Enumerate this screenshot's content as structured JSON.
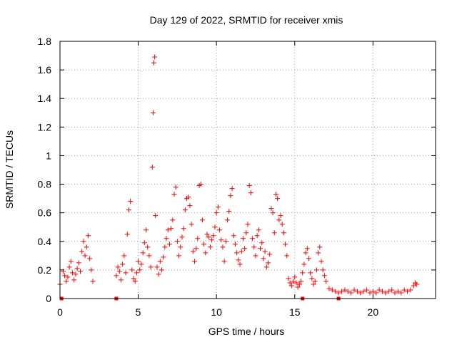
{
  "chart_data": {
    "type": "scatter",
    "title": "Day 129 of 2022, SRMTID for receiver xmis",
    "xlabel": "GPS time / hours",
    "ylabel": "SRMTID / TECUs",
    "xlim": [
      0,
      24
    ],
    "ylim": [
      0,
      1.8
    ],
    "xticks": [
      0,
      5,
      10,
      15,
      20
    ],
    "xtick_labels": [
      "0",
      "5",
      "10",
      "15",
      "20"
    ],
    "yticks": [
      0,
      0.2,
      0.4,
      0.6,
      0.8,
      1,
      1.2,
      1.4,
      1.6,
      1.8
    ],
    "ytick_labels": [
      "0",
      "0.2",
      "0.4",
      "0.6",
      "0.8",
      "1",
      "1.2",
      "1.4",
      "1.6",
      "1.8"
    ],
    "grid": true,
    "marker": "+",
    "color": "#ff0000",
    "data_gaps_at_zero": [
      0.1,
      3.6,
      15.5,
      17.8
    ],
    "series": [
      {
        "name": "SRMTID",
        "points": [
          [
            0.0,
            0.1
          ],
          [
            0.2,
            0.19
          ],
          [
            0.3,
            0.16
          ],
          [
            0.4,
            0.12
          ],
          [
            0.5,
            0.15
          ],
          [
            0.6,
            0.22
          ],
          [
            0.7,
            0.26
          ],
          [
            0.8,
            0.18
          ],
          [
            0.9,
            0.13
          ],
          [
            1.0,
            0.17
          ],
          [
            1.1,
            0.21
          ],
          [
            1.2,
            0.25
          ],
          [
            1.3,
            0.19
          ],
          [
            1.4,
            0.33
          ],
          [
            1.5,
            0.4
          ],
          [
            1.6,
            0.3
          ],
          [
            1.7,
            0.36
          ],
          [
            1.8,
            0.44
          ],
          [
            1.9,
            0.28
          ],
          [
            2.0,
            0.2
          ],
          [
            2.1,
            0.12
          ],
          [
            3.6,
            0.16
          ],
          [
            3.7,
            0.22
          ],
          [
            3.8,
            0.19
          ],
          [
            3.9,
            0.13
          ],
          [
            4.0,
            0.24
          ],
          [
            4.1,
            0.3
          ],
          [
            4.2,
            0.18
          ],
          [
            4.3,
            0.45
          ],
          [
            4.4,
            0.62
          ],
          [
            4.5,
            0.68
          ],
          [
            4.6,
            0.2
          ],
          [
            4.7,
            0.14
          ],
          [
            4.8,
            0.12
          ],
          [
            4.9,
            0.18
          ],
          [
            5.0,
            0.26
          ],
          [
            5.1,
            0.2
          ],
          [
            5.2,
            0.24
          ],
          [
            5.3,
            0.32
          ],
          [
            5.4,
            0.39
          ],
          [
            5.5,
            0.48
          ],
          [
            5.6,
            0.36
          ],
          [
            5.7,
            0.3
          ],
          [
            5.8,
            0.22
          ],
          [
            5.9,
            0.92
          ],
          [
            5.95,
            1.3
          ],
          [
            6.0,
            1.65
          ],
          [
            6.05,
            1.69
          ],
          [
            6.1,
            0.58
          ],
          [
            6.2,
            0.22
          ],
          [
            6.3,
            0.17
          ],
          [
            6.4,
            0.26
          ],
          [
            6.5,
            0.2
          ],
          [
            6.6,
            0.29
          ],
          [
            6.7,
            0.36
          ],
          [
            6.8,
            0.42
          ],
          [
            6.9,
            0.48
          ],
          [
            7.0,
            0.38
          ],
          [
            7.1,
            0.49
          ],
          [
            7.2,
            0.55
          ],
          [
            7.3,
            0.73
          ],
          [
            7.4,
            0.78
          ],
          [
            7.5,
            0.4
          ],
          [
            7.6,
            0.3
          ],
          [
            7.7,
            0.36
          ],
          [
            7.8,
            0.43
          ],
          [
            7.9,
            0.49
          ],
          [
            8.0,
            0.62
          ],
          [
            8.1,
            0.7
          ],
          [
            8.2,
            0.71
          ],
          [
            8.3,
            0.65
          ],
          [
            8.4,
            0.52
          ],
          [
            8.5,
            0.33
          ],
          [
            8.6,
            0.26
          ],
          [
            8.7,
            0.35
          ],
          [
            8.8,
            0.42
          ],
          [
            8.9,
            0.79
          ],
          [
            9.0,
            0.8
          ],
          [
            9.1,
            0.55
          ],
          [
            9.2,
            0.38
          ],
          [
            9.3,
            0.32
          ],
          [
            9.4,
            0.45
          ],
          [
            9.5,
            0.43
          ],
          [
            9.6,
            0.36
          ],
          [
            9.7,
            0.41
          ],
          [
            9.8,
            0.44
          ],
          [
            9.9,
            0.5
          ],
          [
            10.0,
            0.6
          ],
          [
            10.1,
            0.64
          ],
          [
            10.2,
            0.48
          ],
          [
            10.3,
            0.41
          ],
          [
            10.4,
            0.36
          ],
          [
            10.5,
            0.26
          ],
          [
            10.6,
            0.4
          ],
          [
            10.7,
            0.55
          ],
          [
            10.8,
            0.61
          ],
          [
            10.9,
            0.72
          ],
          [
            11.0,
            0.77
          ],
          [
            11.1,
            0.44
          ],
          [
            11.2,
            0.38
          ],
          [
            11.3,
            0.32
          ],
          [
            11.4,
            0.27
          ],
          [
            11.5,
            0.24
          ],
          [
            11.6,
            0.33
          ],
          [
            11.7,
            0.42
          ],
          [
            11.8,
            0.35
          ],
          [
            11.9,
            0.46
          ],
          [
            12.0,
            0.52
          ],
          [
            12.1,
            0.79
          ],
          [
            12.2,
            0.74
          ],
          [
            12.3,
            0.42
          ],
          [
            12.4,
            0.36
          ],
          [
            12.5,
            0.3
          ],
          [
            12.6,
            0.44
          ],
          [
            12.7,
            0.48
          ],
          [
            12.8,
            0.35
          ],
          [
            12.9,
            0.39
          ],
          [
            13.0,
            0.28
          ],
          [
            13.1,
            0.33
          ],
          [
            13.2,
            0.22
          ],
          [
            13.3,
            0.25
          ],
          [
            13.4,
            0.31
          ],
          [
            13.5,
            0.63
          ],
          [
            13.6,
            0.6
          ],
          [
            13.7,
            0.46
          ],
          [
            13.8,
            0.73
          ],
          [
            13.9,
            0.7
          ],
          [
            14.0,
            0.55
          ],
          [
            14.1,
            0.58
          ],
          [
            14.2,
            0.52
          ],
          [
            14.3,
            0.46
          ],
          [
            14.4,
            0.38
          ],
          [
            14.5,
            0.3
          ],
          [
            14.6,
            0.14
          ],
          [
            14.7,
            0.11
          ],
          [
            14.8,
            0.09
          ],
          [
            14.9,
            0.12
          ],
          [
            15.0,
            0.15
          ],
          [
            15.1,
            0.11
          ],
          [
            15.2,
            0.08
          ],
          [
            15.3,
            0.1
          ],
          [
            15.4,
            0.12
          ],
          [
            15.5,
            0.18
          ],
          [
            15.6,
            0.24
          ],
          [
            15.7,
            0.32
          ],
          [
            15.8,
            0.35
          ],
          [
            15.9,
            0.28
          ],
          [
            16.0,
            0.18
          ],
          [
            16.1,
            0.14
          ],
          [
            16.2,
            0.1
          ],
          [
            16.3,
            0.12
          ],
          [
            16.4,
            0.2
          ],
          [
            16.5,
            0.32
          ],
          [
            16.6,
            0.36
          ],
          [
            16.7,
            0.26
          ],
          [
            16.8,
            0.2
          ],
          [
            16.9,
            0.16
          ],
          [
            17.0,
            0.12
          ],
          [
            17.2,
            0.07
          ],
          [
            17.4,
            0.06
          ],
          [
            17.6,
            0.05
          ],
          [
            17.8,
            0.04
          ],
          [
            18.0,
            0.05
          ],
          [
            18.2,
            0.06
          ],
          [
            18.4,
            0.05
          ],
          [
            18.6,
            0.04
          ],
          [
            18.8,
            0.06
          ],
          [
            19.0,
            0.05
          ],
          [
            19.2,
            0.04
          ],
          [
            19.4,
            0.05
          ],
          [
            19.6,
            0.06
          ],
          [
            19.8,
            0.04
          ],
          [
            20.0,
            0.05
          ],
          [
            20.2,
            0.04
          ],
          [
            20.4,
            0.06
          ],
          [
            20.6,
            0.05
          ],
          [
            20.8,
            0.04
          ],
          [
            21.0,
            0.05
          ],
          [
            21.2,
            0.06
          ],
          [
            21.4,
            0.04
          ],
          [
            21.6,
            0.05
          ],
          [
            21.8,
            0.04
          ],
          [
            22.0,
            0.06
          ],
          [
            22.2,
            0.05
          ],
          [
            22.4,
            0.06
          ],
          [
            22.6,
            0.09
          ],
          [
            22.7,
            0.11
          ],
          [
            22.8,
            0.1
          ]
        ]
      }
    ]
  }
}
